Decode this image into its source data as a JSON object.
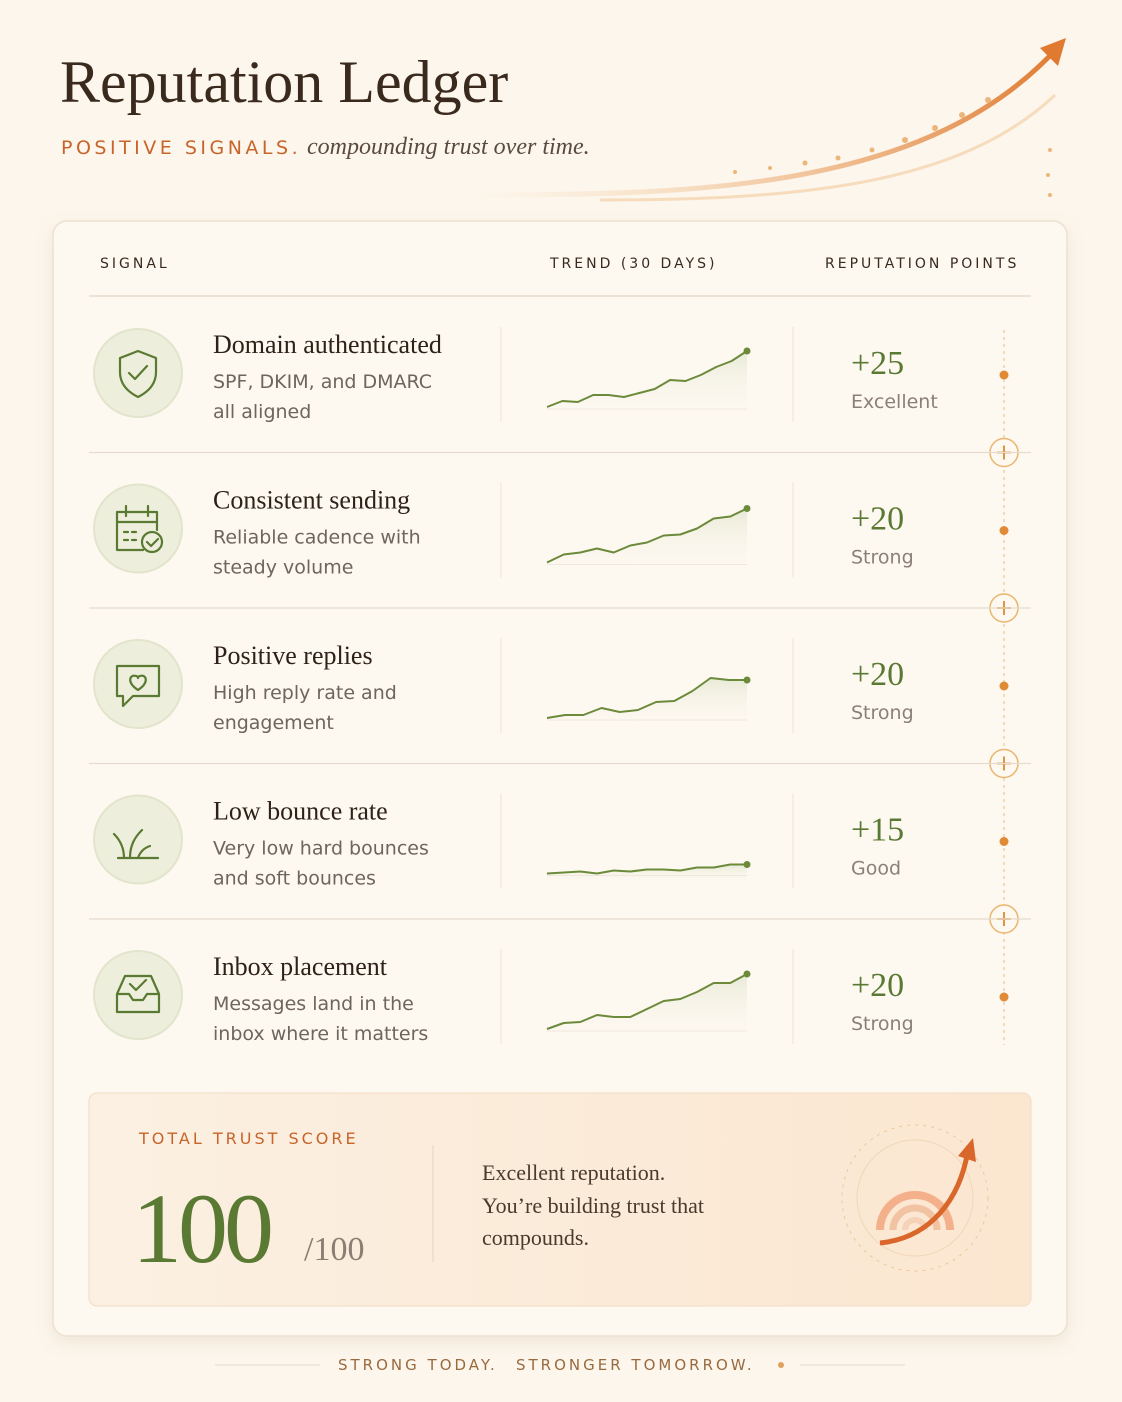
{
  "header": {
    "title": "Reputation Ledger",
    "kicker": "POSITIVE SIGNALS.",
    "subtitle": "compounding trust over time."
  },
  "table": {
    "columns": [
      "SIGNAL",
      "TREND (30 DAYS)",
      "REPUTATION POINTS"
    ],
    "rows": [
      {
        "title": "Domain authenticated",
        "description": [
          "SPF, DKIM, and DMARC",
          "all aligned"
        ],
        "points": "+25",
        "rating": "Excellent",
        "trend": [
          0,
          6,
          5,
          12,
          12,
          10,
          14,
          18,
          27,
          26,
          32,
          40,
          46,
          56
        ]
      },
      {
        "title": "Consistent sending",
        "description": [
          "Reliable cadence with",
          "steady volume"
        ],
        "points": "+20",
        "rating": "Strong",
        "trend": [
          0,
          8,
          10,
          14,
          10,
          17,
          20,
          27,
          28,
          34,
          44,
          46,
          54
        ]
      },
      {
        "title": "Positive replies",
        "description": [
          "High reply rate and",
          "engagement"
        ],
        "points": "+20",
        "rating": "Strong",
        "trend": [
          0,
          3,
          3,
          10,
          6,
          8,
          16,
          17,
          27,
          40,
          38,
          38
        ]
      },
      {
        "title": "Low bounce rate",
        "description": [
          "Very low hard bounces",
          "and soft bounces"
        ],
        "points": "+15",
        "rating": "Good",
        "trend": [
          0,
          1,
          2,
          0,
          3,
          2,
          4,
          4,
          3,
          6,
          6,
          9,
          9
        ]
      },
      {
        "title": "Inbox placement",
        "description": [
          "Messages land in the",
          "inbox where it matters"
        ],
        "points": "+20",
        "rating": "Strong",
        "trend": [
          0,
          6,
          7,
          14,
          12,
          12,
          20,
          28,
          30,
          37,
          46,
          46,
          55
        ]
      }
    ]
  },
  "total": {
    "label": "TOTAL TRUST SCORE",
    "score": "100",
    "max": "/100",
    "message": [
      "Excellent reputation.",
      "You’re building trust that",
      "compounds."
    ]
  },
  "footer": [
    "STRONG TODAY.",
    "STRONGER TOMORROW."
  ]
}
